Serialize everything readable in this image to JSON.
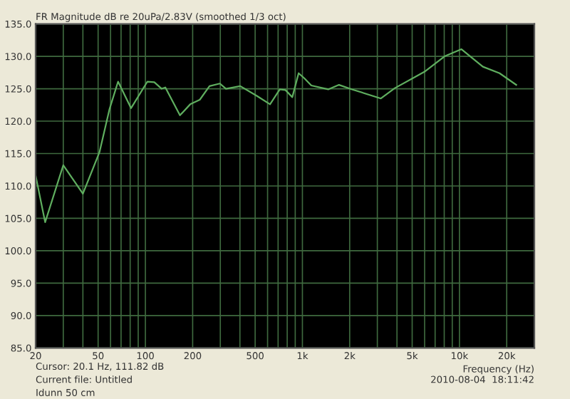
{
  "chart_data": {
    "type": "line",
    "title": "FR Magnitude dB re 20uPa/2.83V (smoothed 1/3 oct)",
    "xlabel": "Frequency (Hz)",
    "annotations": [
      "Cursor: 20.1 Hz, 111.82 dB",
      "Current file: Untitled",
      "Idunn 50 cm",
      "2010-08-04  18:11:42"
    ],
    "log": "x",
    "grid": true,
    "legend": false,
    "marker": "none",
    "line_style": "solid",
    "xlim": [
      20,
      30000
    ],
    "ylim": [
      85,
      135
    ],
    "xticks": [
      20,
      {
        "value": 30,
        "label": null
      },
      {
        "value": 40,
        "label": null
      },
      50,
      {
        "value": 60,
        "label": null
      },
      {
        "value": 70,
        "label": null
      },
      {
        "value": 80,
        "label": null
      },
      {
        "value": 90,
        "label": null
      },
      100,
      200,
      {
        "value": 300,
        "label": null
      },
      {
        "value": 400,
        "label": null
      },
      500,
      {
        "value": 600,
        "label": null
      },
      {
        "value": 700,
        "label": null
      },
      {
        "value": 800,
        "label": null
      },
      {
        "value": 900,
        "label": null
      },
      {
        "value": 1000,
        "label": "1k"
      },
      {
        "value": 2000,
        "label": "2k"
      },
      {
        "value": 3000,
        "label": null
      },
      {
        "value": 4000,
        "label": null
      },
      {
        "value": 5000,
        "label": "5k"
      },
      {
        "value": 6000,
        "label": null
      },
      {
        "value": 7000,
        "label": null
      },
      {
        "value": 8000,
        "label": null
      },
      {
        "value": 9000,
        "label": null
      },
      {
        "value": 10000,
        "label": "10k"
      },
      {
        "value": 20000,
        "label": "20k"
      }
    ],
    "yticks": [
      {
        "value": 85,
        "label": "85.0"
      },
      {
        "value": 90,
        "label": "90.0"
      },
      {
        "value": 95,
        "label": "95.0"
      },
      {
        "value": 100,
        "label": "100.0"
      },
      {
        "value": 105,
        "label": "105.0"
      },
      {
        "value": 110,
        "label": "110.0"
      },
      {
        "value": 115,
        "label": "115.0"
      },
      {
        "value": 120,
        "label": "120.0"
      },
      {
        "value": 125,
        "label": "125.0"
      },
      {
        "value": 130,
        "label": "130.0"
      },
      {
        "value": 135,
        "label": "135.0"
      }
    ],
    "series": [
      {
        "color": "#5fae5f",
        "x": [
          20,
          23,
          30,
          40,
          51,
          59,
          67,
          81,
          103,
          114,
          127,
          134,
          166,
          193,
          222,
          256,
          298,
          326,
          402,
          512,
          622,
          718,
          780,
          862,
          946,
          1030,
          1140,
          1460,
          1710,
          2070,
          3160,
          3880,
          5120,
          6060,
          8040,
          10300,
          14100,
          18000,
          23000
        ],
        "values": [
          111.6,
          104.4,
          113.2,
          108.8,
          115.2,
          121.8,
          126.1,
          122.0,
          126.1,
          126.0,
          125.0,
          125.2,
          120.9,
          122.6,
          123.3,
          125.4,
          125.8,
          125.0,
          125.4,
          123.9,
          122.6,
          124.9,
          124.8,
          123.7,
          127.4,
          126.6,
          125.5,
          124.9,
          125.6,
          124.9,
          123.5,
          125.1,
          126.7,
          127.7,
          130.0,
          131.1,
          128.4,
          127.4,
          125.6
        ]
      }
    ]
  }
}
